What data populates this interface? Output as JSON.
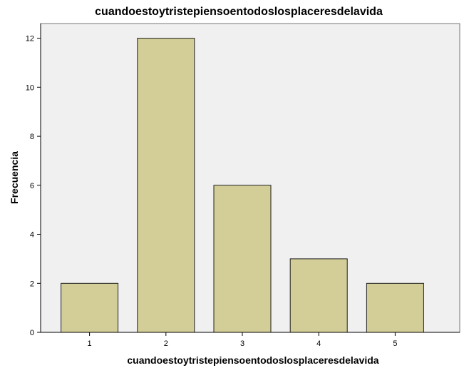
{
  "chart_data": {
    "type": "bar",
    "title": "cuandoestoytristepiensoentodoslosplaceresdelavida",
    "xlabel": "cuandoestoytristepiensoentodoslosplaceresdelavida",
    "ylabel": "Frecuencia",
    "categories": [
      "1",
      "2",
      "3",
      "4",
      "5"
    ],
    "values": [
      2,
      12,
      6,
      3,
      2
    ],
    "ylim": [
      0,
      12.6
    ],
    "yticks": [
      0,
      2,
      4,
      6,
      8,
      10,
      12
    ],
    "ytick_labels": [
      "0",
      "2",
      "4",
      "6",
      "8",
      "10",
      "12"
    ],
    "grid": false,
    "colors": {
      "bar_fill": "#d3ce97",
      "bar_stroke": "#1e1e1e",
      "plot_background": "#f0f0f0",
      "axis": "#000000",
      "frame": "#777777"
    }
  }
}
